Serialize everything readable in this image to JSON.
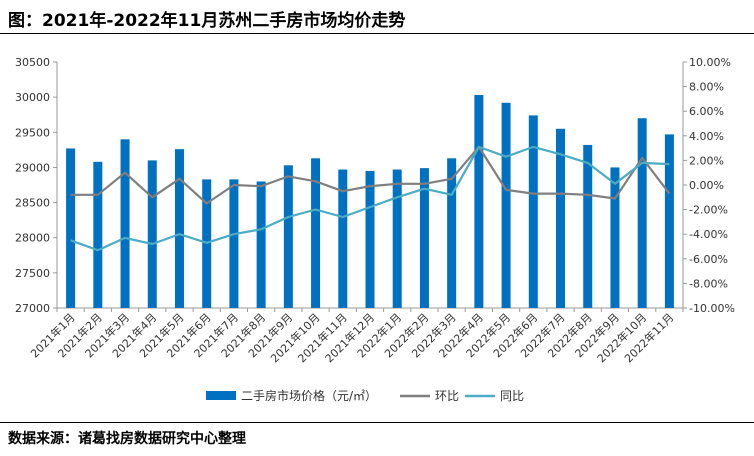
{
  "header": {
    "title": "图：2021年-2022年11月苏州二手房市场均价走势"
  },
  "footer": {
    "source": "数据来源：诸葛找房数据研究中心整理"
  },
  "chart_data": {
    "type": "bar",
    "categories": [
      "2021年1月",
      "2021年2月",
      "2021年3月",
      "2021年4月",
      "2021年5月",
      "2021年6月",
      "2021年7月",
      "2021年8月",
      "2021年9月",
      "2021年10月",
      "2021年11月",
      "2021年12月",
      "2022年1月",
      "2022年2月",
      "2022年3月",
      "2022年4月",
      "2022年5月",
      "2022年6月",
      "2022年7月",
      "2022年8月",
      "2022年9月",
      "2022年10月",
      "2022年11月"
    ],
    "y_left": {
      "ylim": [
        27000,
        30500
      ],
      "ticks": [
        "27000",
        "27500",
        "28000",
        "28500",
        "29000",
        "29500",
        "30000",
        "30500"
      ]
    },
    "y_right": {
      "ylim": [
        -10,
        10
      ],
      "ticks": [
        "-10.00%",
        "-8.00%",
        "-6.00%",
        "-4.00%",
        "-2.00%",
        "0.00%",
        "2.00%",
        "4.00%",
        "6.00%",
        "8.00%",
        "10.00%"
      ]
    },
    "series": [
      {
        "name": "二手房市场价格（元/㎡）",
        "type": "bar",
        "axis": "left",
        "color": "#0070C0",
        "values": [
          29270,
          29080,
          29400,
          29100,
          29260,
          28830,
          28830,
          28800,
          29030,
          29130,
          28970,
          28950,
          28970,
          28990,
          29130,
          30030,
          29920,
          29740,
          29550,
          29320,
          29000,
          29700,
          29470
        ]
      },
      {
        "name": "环比",
        "type": "line",
        "axis": "right",
        "color": "#7F7F7F",
        "values": [
          -0.8,
          -0.8,
          1.0,
          -1.0,
          0.5,
          -1.5,
          0.0,
          -0.1,
          0.7,
          0.3,
          -0.5,
          -0.1,
          0.1,
          0.1,
          0.5,
          3.1,
          -0.4,
          -0.7,
          -0.7,
          -0.8,
          -1.1,
          2.2,
          -0.7
        ]
      },
      {
        "name": "同比",
        "type": "line",
        "axis": "right",
        "color": "#4BACC6",
        "values": [
          -4.5,
          -5.3,
          -4.3,
          -4.8,
          -4.0,
          -4.7,
          -4.0,
          -3.6,
          -2.6,
          -2.0,
          -2.6,
          -1.8,
          -1.0,
          -0.3,
          -0.8,
          3.1,
          2.3,
          3.1,
          2.5,
          1.8,
          0.1,
          1.8,
          1.7
        ]
      }
    ],
    "legend": {
      "placement": "bottom"
    },
    "grid": false
  }
}
